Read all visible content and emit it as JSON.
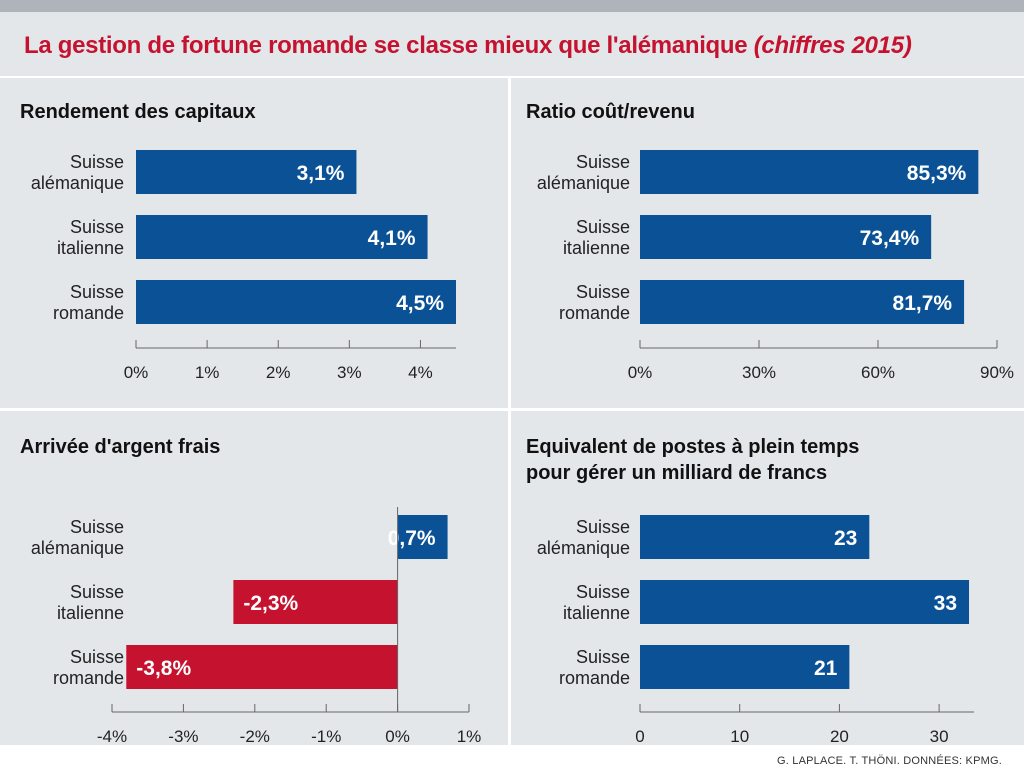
{
  "title": {
    "main": "La gestion de fortune romande se classe mieux que l'alémanique",
    "suffix": "(chiffres 2015)"
  },
  "source": "G. LAPLACE. T. THÖNI. DONNÉES: KPMG.",
  "colors": {
    "title": "#c4122f",
    "positive": "#0a5196",
    "negative": "#c4122f",
    "panel": "#e4e7ea"
  },
  "chart_data": [
    {
      "type": "bar",
      "orientation": "horizontal",
      "title": "Rendement des capitaux",
      "categories": [
        [
          "Suisse",
          "alémanique"
        ],
        [
          "Suisse",
          "italienne"
        ],
        [
          "Suisse",
          "romande"
        ]
      ],
      "values": [
        3.1,
        4.1,
        4.5
      ],
      "value_labels": [
        "3,1%",
        "4,1%",
        "4,5%"
      ],
      "xlim": [
        0,
        4.5
      ],
      "ticks": [
        0,
        1,
        2,
        3,
        4
      ],
      "tick_labels": [
        "0%",
        "1%",
        "2%",
        "3%",
        "4%"
      ],
      "grid": false
    },
    {
      "type": "bar",
      "orientation": "horizontal",
      "title": "Ratio coût/revenu",
      "categories": [
        [
          "Suisse",
          "alémanique"
        ],
        [
          "Suisse",
          "italienne"
        ],
        [
          "Suisse",
          "romande"
        ]
      ],
      "values": [
        85.3,
        73.4,
        81.7
      ],
      "value_labels": [
        "85,3%",
        "73,4%",
        "81,7%"
      ],
      "xlim": [
        0,
        90
      ],
      "ticks": [
        0,
        30,
        60,
        90
      ],
      "tick_labels": [
        "0%",
        "30%",
        "60%",
        "90%"
      ],
      "grid": false
    },
    {
      "type": "bar",
      "orientation": "horizontal",
      "title": "Arrivée d'argent frais",
      "categories": [
        [
          "Suisse",
          "alémanique"
        ],
        [
          "Suisse",
          "italienne"
        ],
        [
          "Suisse",
          "romande"
        ]
      ],
      "values": [
        0.7,
        -2.3,
        -3.8
      ],
      "value_labels": [
        "0,7%",
        "-2,3%",
        "-3,8%"
      ],
      "xlim": [
        -4,
        1
      ],
      "ticks": [
        -4,
        -3,
        -2,
        -1,
        0,
        1
      ],
      "tick_labels": [
        "-4%",
        "-3%",
        "-2%",
        "-1%",
        "0%",
        "1%"
      ],
      "grid": false
    },
    {
      "type": "bar",
      "orientation": "horizontal",
      "title": [
        "Equivalent de postes à plein temps",
        "pour gérer un milliard de francs"
      ],
      "categories": [
        [
          "Suisse",
          "alémanique"
        ],
        [
          "Suisse",
          "italienne"
        ],
        [
          "Suisse",
          "romande"
        ]
      ],
      "values": [
        23,
        33,
        21
      ],
      "value_labels": [
        "23",
        "33",
        "21"
      ],
      "xlim": [
        0,
        33.5
      ],
      "ticks": [
        0,
        10,
        20,
        30
      ],
      "tick_labels": [
        "0",
        "10",
        "20",
        "30"
      ],
      "grid": false
    }
  ]
}
